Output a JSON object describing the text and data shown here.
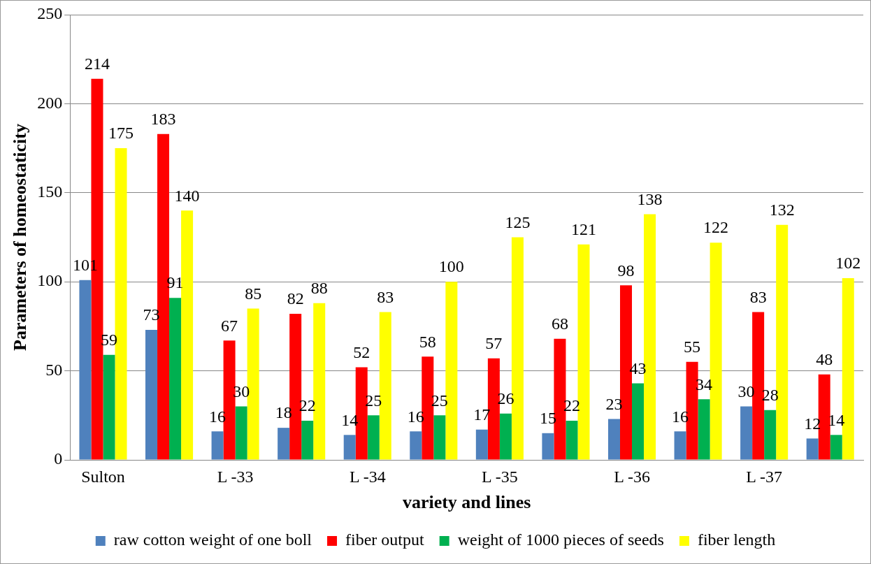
{
  "chart_data": {
    "type": "bar",
    "xlabel": "variety and lines",
    "ylabel": "Parameters of homeostaticity",
    "categories": [
      "Sulton",
      null,
      "L -33",
      null,
      "L -34",
      null,
      "L -35",
      null,
      "L -36",
      null,
      "L -37",
      null
    ],
    "series": [
      {
        "name": "raw cotton weight of one boll",
        "color": "#4f81bd",
        "values": [
          101,
          73,
          16,
          18,
          14,
          16,
          17,
          15,
          23,
          16,
          30,
          12
        ]
      },
      {
        "name": "fiber output",
        "color": "#ff0000",
        "values": [
          214,
          183,
          67,
          82,
          52,
          58,
          57,
          68,
          98,
          55,
          83,
          48
        ]
      },
      {
        "name": "weight of 1000 pieces of seeds",
        "color": "#00b050",
        "values": [
          59,
          91,
          30,
          22,
          25,
          25,
          26,
          22,
          43,
          34,
          28,
          14
        ]
      },
      {
        "name": "fiber length",
        "color": "#ffff00",
        "values": [
          175,
          140,
          85,
          88,
          83,
          100,
          125,
          121,
          138,
          122,
          132,
          102
        ]
      }
    ],
    "ylim": [
      0,
      250
    ],
    "yticks": [
      0,
      50,
      100,
      150,
      200,
      250
    ],
    "grid": "y",
    "legend": "bottom",
    "data_labels": true
  }
}
